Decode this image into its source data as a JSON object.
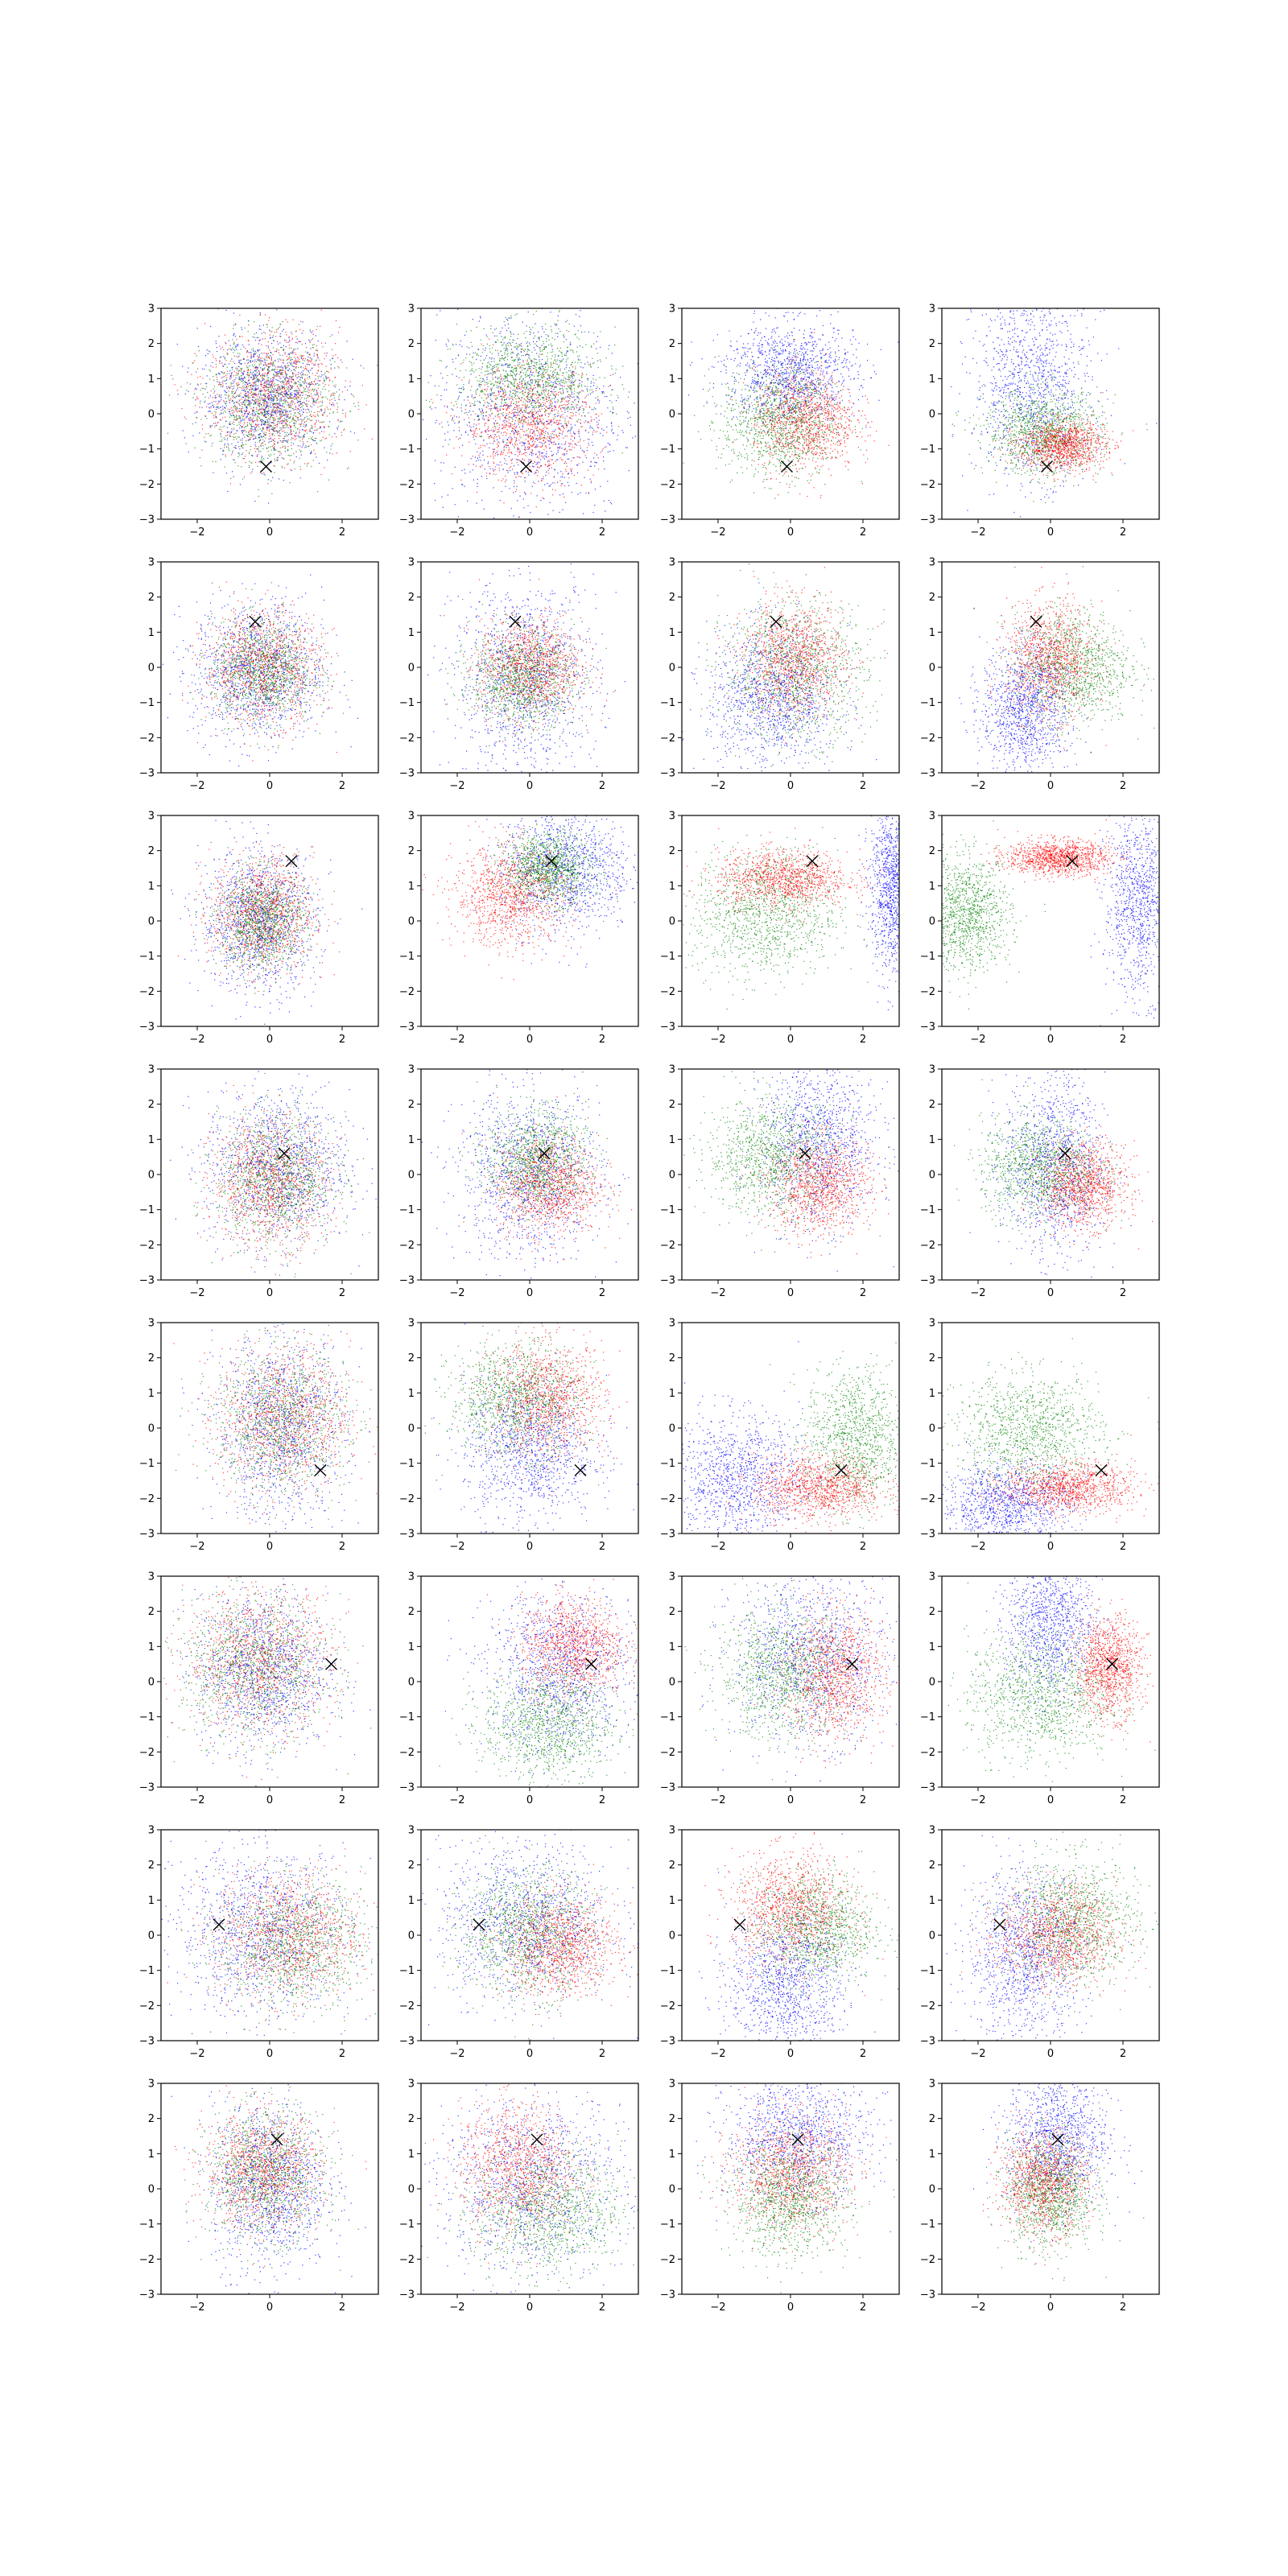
{
  "figure": {
    "layout": "8 rows x 4 columns grid of scatter plots",
    "rows": 8,
    "cols": 4
  },
  "colors": {
    "red": "#ff0000",
    "green": "#008000",
    "blue": "#0000ff",
    "marker": "#000000"
  },
  "chart_data": {
    "type": "scatter",
    "xlim": [
      -3,
      3
    ],
    "ylim": [
      -3,
      3
    ],
    "xticks": [
      -2,
      0,
      2
    ],
    "yticks": [
      -3,
      -2,
      -1,
      0,
      1,
      2,
      3
    ],
    "xtick_labels": [
      "−2",
      "0",
      "2"
    ],
    "ytick_labels": [
      "−3",
      "−2",
      "−1",
      "0",
      "1",
      "2",
      "3"
    ],
    "grid": false,
    "legend": "none",
    "marker_symbol": "x",
    "series_colors": [
      "red",
      "green",
      "blue"
    ],
    "rows": [
      {
        "marker": [
          -0.1,
          -1.5
        ],
        "panels": [
          {
            "red": [
              0.1,
              0.5,
              0.9,
              0.9
            ],
            "green": [
              0.0,
              0.3,
              0.9,
              0.9
            ],
            "blue": [
              -0.1,
              0.5,
              0.9,
              0.9
            ]
          },
          {
            "red": [
              0.0,
              -0.3,
              0.9,
              0.8
            ],
            "green": [
              0.0,
              1.0,
              1.0,
              0.7
            ],
            "blue": [
              0.0,
              0.0,
              1.3,
              1.5
            ]
          },
          {
            "red": [
              0.4,
              -0.2,
              0.7,
              0.7
            ],
            "green": [
              -0.3,
              -0.2,
              0.8,
              0.8
            ],
            "blue": [
              0.0,
              1.2,
              0.9,
              0.7
            ]
          },
          {
            "red": [
              0.3,
              -0.9,
              0.6,
              0.35
            ],
            "green": [
              -0.2,
              -0.5,
              0.8,
              0.6
            ],
            "blue": [
              -0.5,
              1.0,
              0.8,
              1.4
            ]
          }
        ]
      },
      {
        "marker": [
          -0.4,
          1.3
        ],
        "panels": [
          {
            "red": [
              -0.2,
              0.0,
              0.8,
              0.8
            ],
            "green": [
              -0.2,
              -0.1,
              0.7,
              0.7
            ],
            "blue": [
              -0.3,
              -0.1,
              0.9,
              1.0
            ]
          },
          {
            "red": [
              0.0,
              0.0,
              0.7,
              0.7
            ],
            "green": [
              -0.2,
              -0.3,
              0.7,
              0.7
            ],
            "blue": [
              -0.1,
              -0.3,
              1.0,
              1.4
            ]
          },
          {
            "red": [
              0.1,
              0.2,
              0.7,
              0.8
            ],
            "green": [
              0.1,
              -0.1,
              1.0,
              1.0
            ],
            "blue": [
              -0.5,
              -0.9,
              0.9,
              1.0
            ]
          },
          {
            "red": [
              0.0,
              0.2,
              0.6,
              0.8
            ],
            "green": [
              0.6,
              0.0,
              0.8,
              0.8
            ],
            "blue": [
              -0.7,
              -1.2,
              0.6,
              0.9
            ]
          }
        ]
      },
      {
        "marker": [
          0.6,
          1.7
        ],
        "panels": [
          {
            "red": [
              -0.2,
              0.2,
              0.7,
              0.8
            ],
            "green": [
              -0.2,
              0.0,
              0.6,
              0.7
            ],
            "blue": [
              -0.3,
              0.0,
              0.8,
              1.0
            ]
          },
          {
            "red": [
              -0.5,
              0.7,
              0.8,
              0.7
            ],
            "green": [
              0.5,
              1.5,
              0.6,
              0.5
            ],
            "blue": [
              1.0,
              1.5,
              0.9,
              0.9
            ]
          },
          {
            "red": [
              -0.2,
              1.2,
              0.9,
              0.4
            ],
            "green": [
              -0.7,
              0.2,
              1.0,
              0.9
            ],
            "blue": [
              2.8,
              1.0,
              0.3,
              1.2
            ]
          },
          {
            "red": [
              0.2,
              1.8,
              0.7,
              0.25
            ],
            "green": [
              -2.3,
              0.2,
              0.6,
              0.8
            ],
            "blue": [
              2.5,
              0.5,
              0.5,
              1.3
            ]
          }
        ]
      },
      {
        "marker": [
          0.4,
          0.6
        ],
        "panels": [
          {
            "red": [
              0.0,
              -0.2,
              0.8,
              0.9
            ],
            "green": [
              0.2,
              -0.1,
              0.8,
              0.9
            ],
            "blue": [
              0.2,
              0.2,
              1.0,
              1.1
            ]
          },
          {
            "red": [
              0.5,
              -0.3,
              0.7,
              0.7
            ],
            "green": [
              0.2,
              0.4,
              0.7,
              0.7
            ],
            "blue": [
              0.0,
              0.0,
              1.0,
              1.2
            ]
          },
          {
            "red": [
              0.8,
              -0.3,
              0.7,
              0.7
            ],
            "green": [
              -0.5,
              0.5,
              0.9,
              0.8
            ],
            "blue": [
              0.8,
              1.0,
              0.8,
              1.2
            ]
          },
          {
            "red": [
              0.9,
              -0.3,
              0.6,
              0.6
            ],
            "green": [
              -0.3,
              0.2,
              0.8,
              0.7
            ],
            "blue": [
              0.1,
              0.3,
              0.7,
              1.3
            ]
          }
        ]
      },
      {
        "marker": [
          1.4,
          -1.2
        ],
        "panels": [
          {
            "red": [
              0.4,
              0.3,
              0.9,
              1.0
            ],
            "green": [
              0.3,
              0.2,
              0.9,
              1.0
            ],
            "blue": [
              0.3,
              0.0,
              0.9,
              1.3
            ]
          },
          {
            "red": [
              0.5,
              0.8,
              0.8,
              0.8
            ],
            "green": [
              -0.4,
              0.8,
              0.9,
              0.8
            ],
            "blue": [
              0.0,
              -0.6,
              0.9,
              1.0
            ]
          },
          {
            "red": [
              0.8,
              -1.7,
              0.9,
              0.45
            ],
            "green": [
              1.8,
              -0.3,
              0.7,
              1.0
            ],
            "blue": [
              -1.5,
              -1.4,
              0.9,
              0.9
            ]
          },
          {
            "red": [
              0.5,
              -1.7,
              0.9,
              0.35
            ],
            "green": [
              -0.6,
              -0.1,
              1.0,
              0.8
            ],
            "blue": [
              -1.2,
              -2.2,
              0.9,
              0.6
            ]
          }
        ]
      },
      {
        "marker": [
          1.7,
          0.5
        ],
        "panels": [
          {
            "red": [
              -0.3,
              0.6,
              1.0,
              1.0
            ],
            "green": [
              -0.4,
              0.4,
              1.0,
              1.0
            ],
            "blue": [
              -0.2,
              0.3,
              0.9,
              1.1
            ]
          },
          {
            "red": [
              1.2,
              1.0,
              0.7,
              0.7
            ],
            "green": [
              0.5,
              -1.2,
              0.9,
              0.8
            ],
            "blue": [
              0.8,
              0.3,
              1.0,
              1.2
            ]
          },
          {
            "red": [
              1.2,
              0.2,
              0.7,
              0.9
            ],
            "green": [
              -0.2,
              0.2,
              0.9,
              0.9
            ],
            "blue": [
              0.6,
              0.7,
              1.1,
              1.2
            ]
          },
          {
            "red": [
              1.6,
              0.4,
              0.45,
              0.7
            ],
            "green": [
              -0.3,
              -0.4,
              1.0,
              0.9
            ],
            "blue": [
              0.0,
              1.8,
              0.6,
              1.1
            ]
          }
        ]
      },
      {
        "marker": [
          -1.4,
          0.3
        ],
        "panels": [
          {
            "red": [
              0.5,
              0.0,
              1.0,
              0.9
            ],
            "green": [
              0.6,
              -0.2,
              1.0,
              0.9
            ],
            "blue": [
              -0.2,
              0.1,
              1.2,
              1.2
            ]
          },
          {
            "red": [
              0.8,
              -0.3,
              0.8,
              0.7
            ],
            "green": [
              -0.1,
              0.1,
              0.9,
              0.9
            ],
            "blue": [
              -0.1,
              0.4,
              1.2,
              1.1
            ]
          },
          {
            "red": [
              0.0,
              0.7,
              0.8,
              0.8
            ],
            "green": [
              0.7,
              0.2,
              0.8,
              0.8
            ],
            "blue": [
              -0.1,
              -1.4,
              0.8,
              1.0
            ]
          },
          {
            "red": [
              0.2,
              0.0,
              0.8,
              0.7
            ],
            "green": [
              0.6,
              0.4,
              0.9,
              0.9
            ],
            "blue": [
              -0.7,
              -0.6,
              0.8,
              1.2
            ]
          }
        ]
      },
      {
        "marker": [
          0.2,
          1.4
        ],
        "panels": [
          {
            "red": [
              -0.2,
              0.5,
              0.8,
              0.8
            ],
            "green": [
              -0.1,
              0.4,
              0.8,
              0.9
            ],
            "blue": [
              0.0,
              0.1,
              0.8,
              1.2
            ]
          },
          {
            "red": [
              -0.3,
              0.6,
              0.8,
              0.9
            ],
            "green": [
              0.5,
              -0.6,
              1.0,
              0.9
            ],
            "blue": [
              0.0,
              0.2,
              1.3,
              1.3
            ]
          },
          {
            "red": [
              0.0,
              0.5,
              0.8,
              0.8
            ],
            "green": [
              0.0,
              -0.3,
              0.8,
              0.8
            ],
            "blue": [
              0.2,
              1.5,
              1.0,
              0.9
            ]
          },
          {
            "red": [
              -0.2,
              0.2,
              0.6,
              0.7
            ],
            "green": [
              0.0,
              -0.1,
              0.6,
              0.8
            ],
            "blue": [
              0.2,
              1.5,
              0.7,
              1.0
            ]
          }
        ]
      }
    ]
  }
}
